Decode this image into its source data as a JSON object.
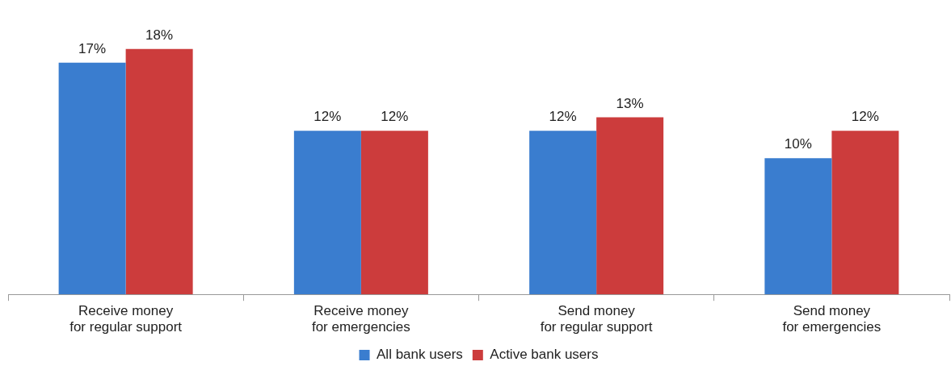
{
  "chart_data": {
    "type": "bar",
    "categories": [
      "Receive money\nfor regular support",
      "Receive money\nfor emergencies",
      "Send money\nfor regular support",
      "Send money\nfor emergencies"
    ],
    "series": [
      {
        "name": "All bank users",
        "color": "#3a7dcf",
        "values": [
          17,
          12,
          12,
          10
        ],
        "value_labels": [
          "17%",
          "12%",
          "12%",
          "10%"
        ]
      },
      {
        "name": "Active bank users",
        "color": "#cc3c3c",
        "values": [
          18,
          12,
          13,
          12
        ],
        "value_labels": [
          "18%",
          "12%",
          "13%",
          "12%"
        ]
      }
    ],
    "tick_labels": "x",
    "grid": false,
    "legend": "bottom"
  }
}
